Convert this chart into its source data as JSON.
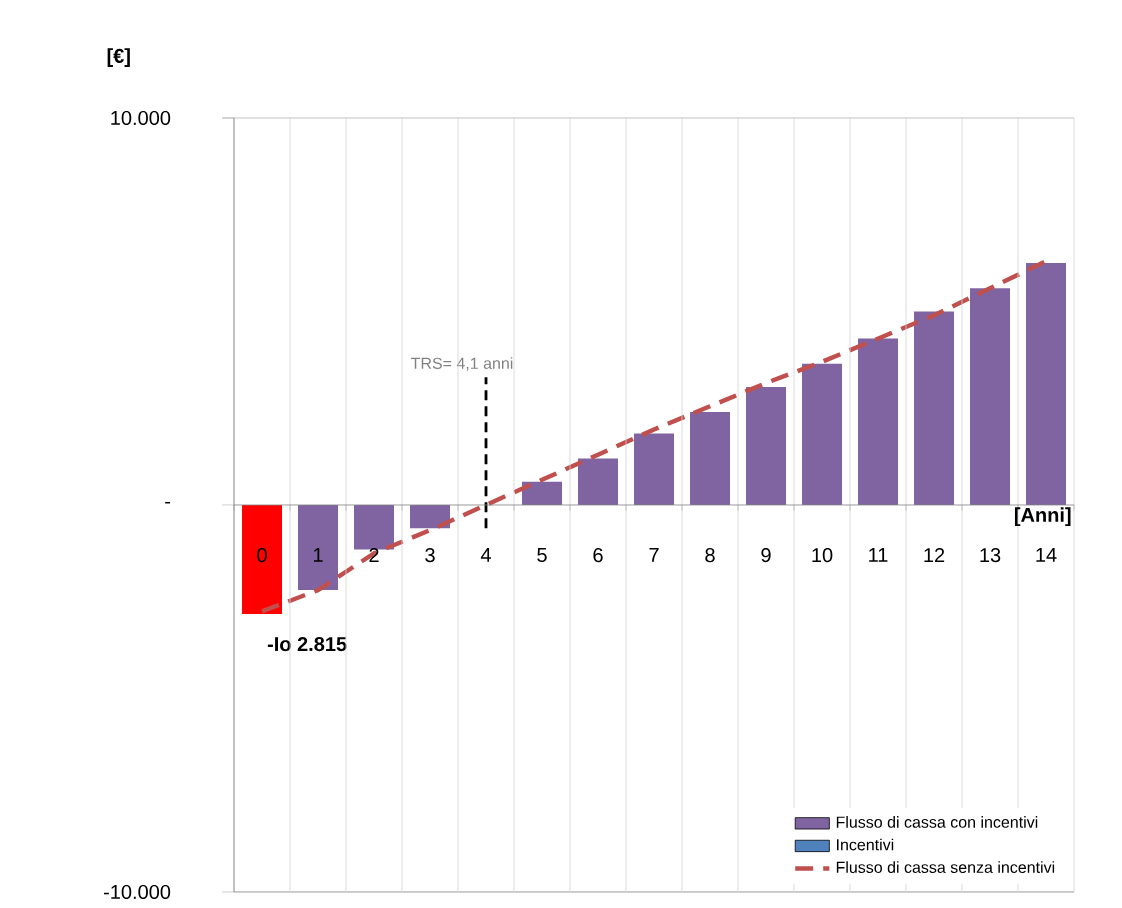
{
  "chart_data": {
    "type": "bar",
    "ylabel": "[€]",
    "xlabel": "[Anni]",
    "categories": [
      "0",
      "1",
      "2",
      "3",
      "4",
      "5",
      "6",
      "7",
      "8",
      "9",
      "10",
      "11",
      "12",
      "13",
      "14"
    ],
    "series": [
      {
        "name": "Flusso di cassa con incentivi",
        "type": "bar",
        "color": "#8064a2",
        "colors": [
          "#ff0000",
          "#8064a2",
          "#8064a2",
          "#8064a2",
          "#8064a2",
          "#8064a2",
          "#8064a2",
          "#8064a2",
          "#8064a2",
          "#8064a2",
          "#8064a2",
          "#8064a2",
          "#8064a2",
          "#8064a2",
          "#8064a2"
        ],
        "values": [
          -2815,
          -2200,
          -1150,
          -600,
          0,
          600,
          1200,
          1850,
          2400,
          3050,
          3650,
          4300,
          5000,
          5600,
          6250
        ]
      },
      {
        "name": "Incentivi",
        "type": "bar",
        "color": "#4f81bd",
        "values": [
          null,
          null,
          null,
          null,
          null,
          null,
          null,
          null,
          null,
          null,
          null,
          null,
          null,
          null,
          null
        ]
      },
      {
        "name": "Flusso di cassa senza incentivi",
        "type": "line",
        "line_style": "dashed",
        "color": "#c0504d",
        "values": [
          -2750,
          -2200,
          -1250,
          -650,
          0,
          650,
          1300,
          1950,
          2550,
          3150,
          3700,
          4300,
          4900,
          5600,
          6300
        ]
      }
    ],
    "ylim": [
      -10000,
      10000
    ],
    "yticks": [
      {
        "value": -10000,
        "label": "-10.000"
      },
      {
        "value": 0,
        "label": "-"
      },
      {
        "value": 10000,
        "label": "10.000"
      }
    ],
    "grid": "x",
    "legend": "bottom right",
    "ref_lines": [
      {
        "axis": "x",
        "value": "4",
        "label": "TRS= 4,1 anni",
        "color": "#000000",
        "line_style": "dashed"
      }
    ],
    "annotations": [
      {
        "text": "-Io 2.815",
        "x": "0",
        "y": -2815
      }
    ]
  }
}
